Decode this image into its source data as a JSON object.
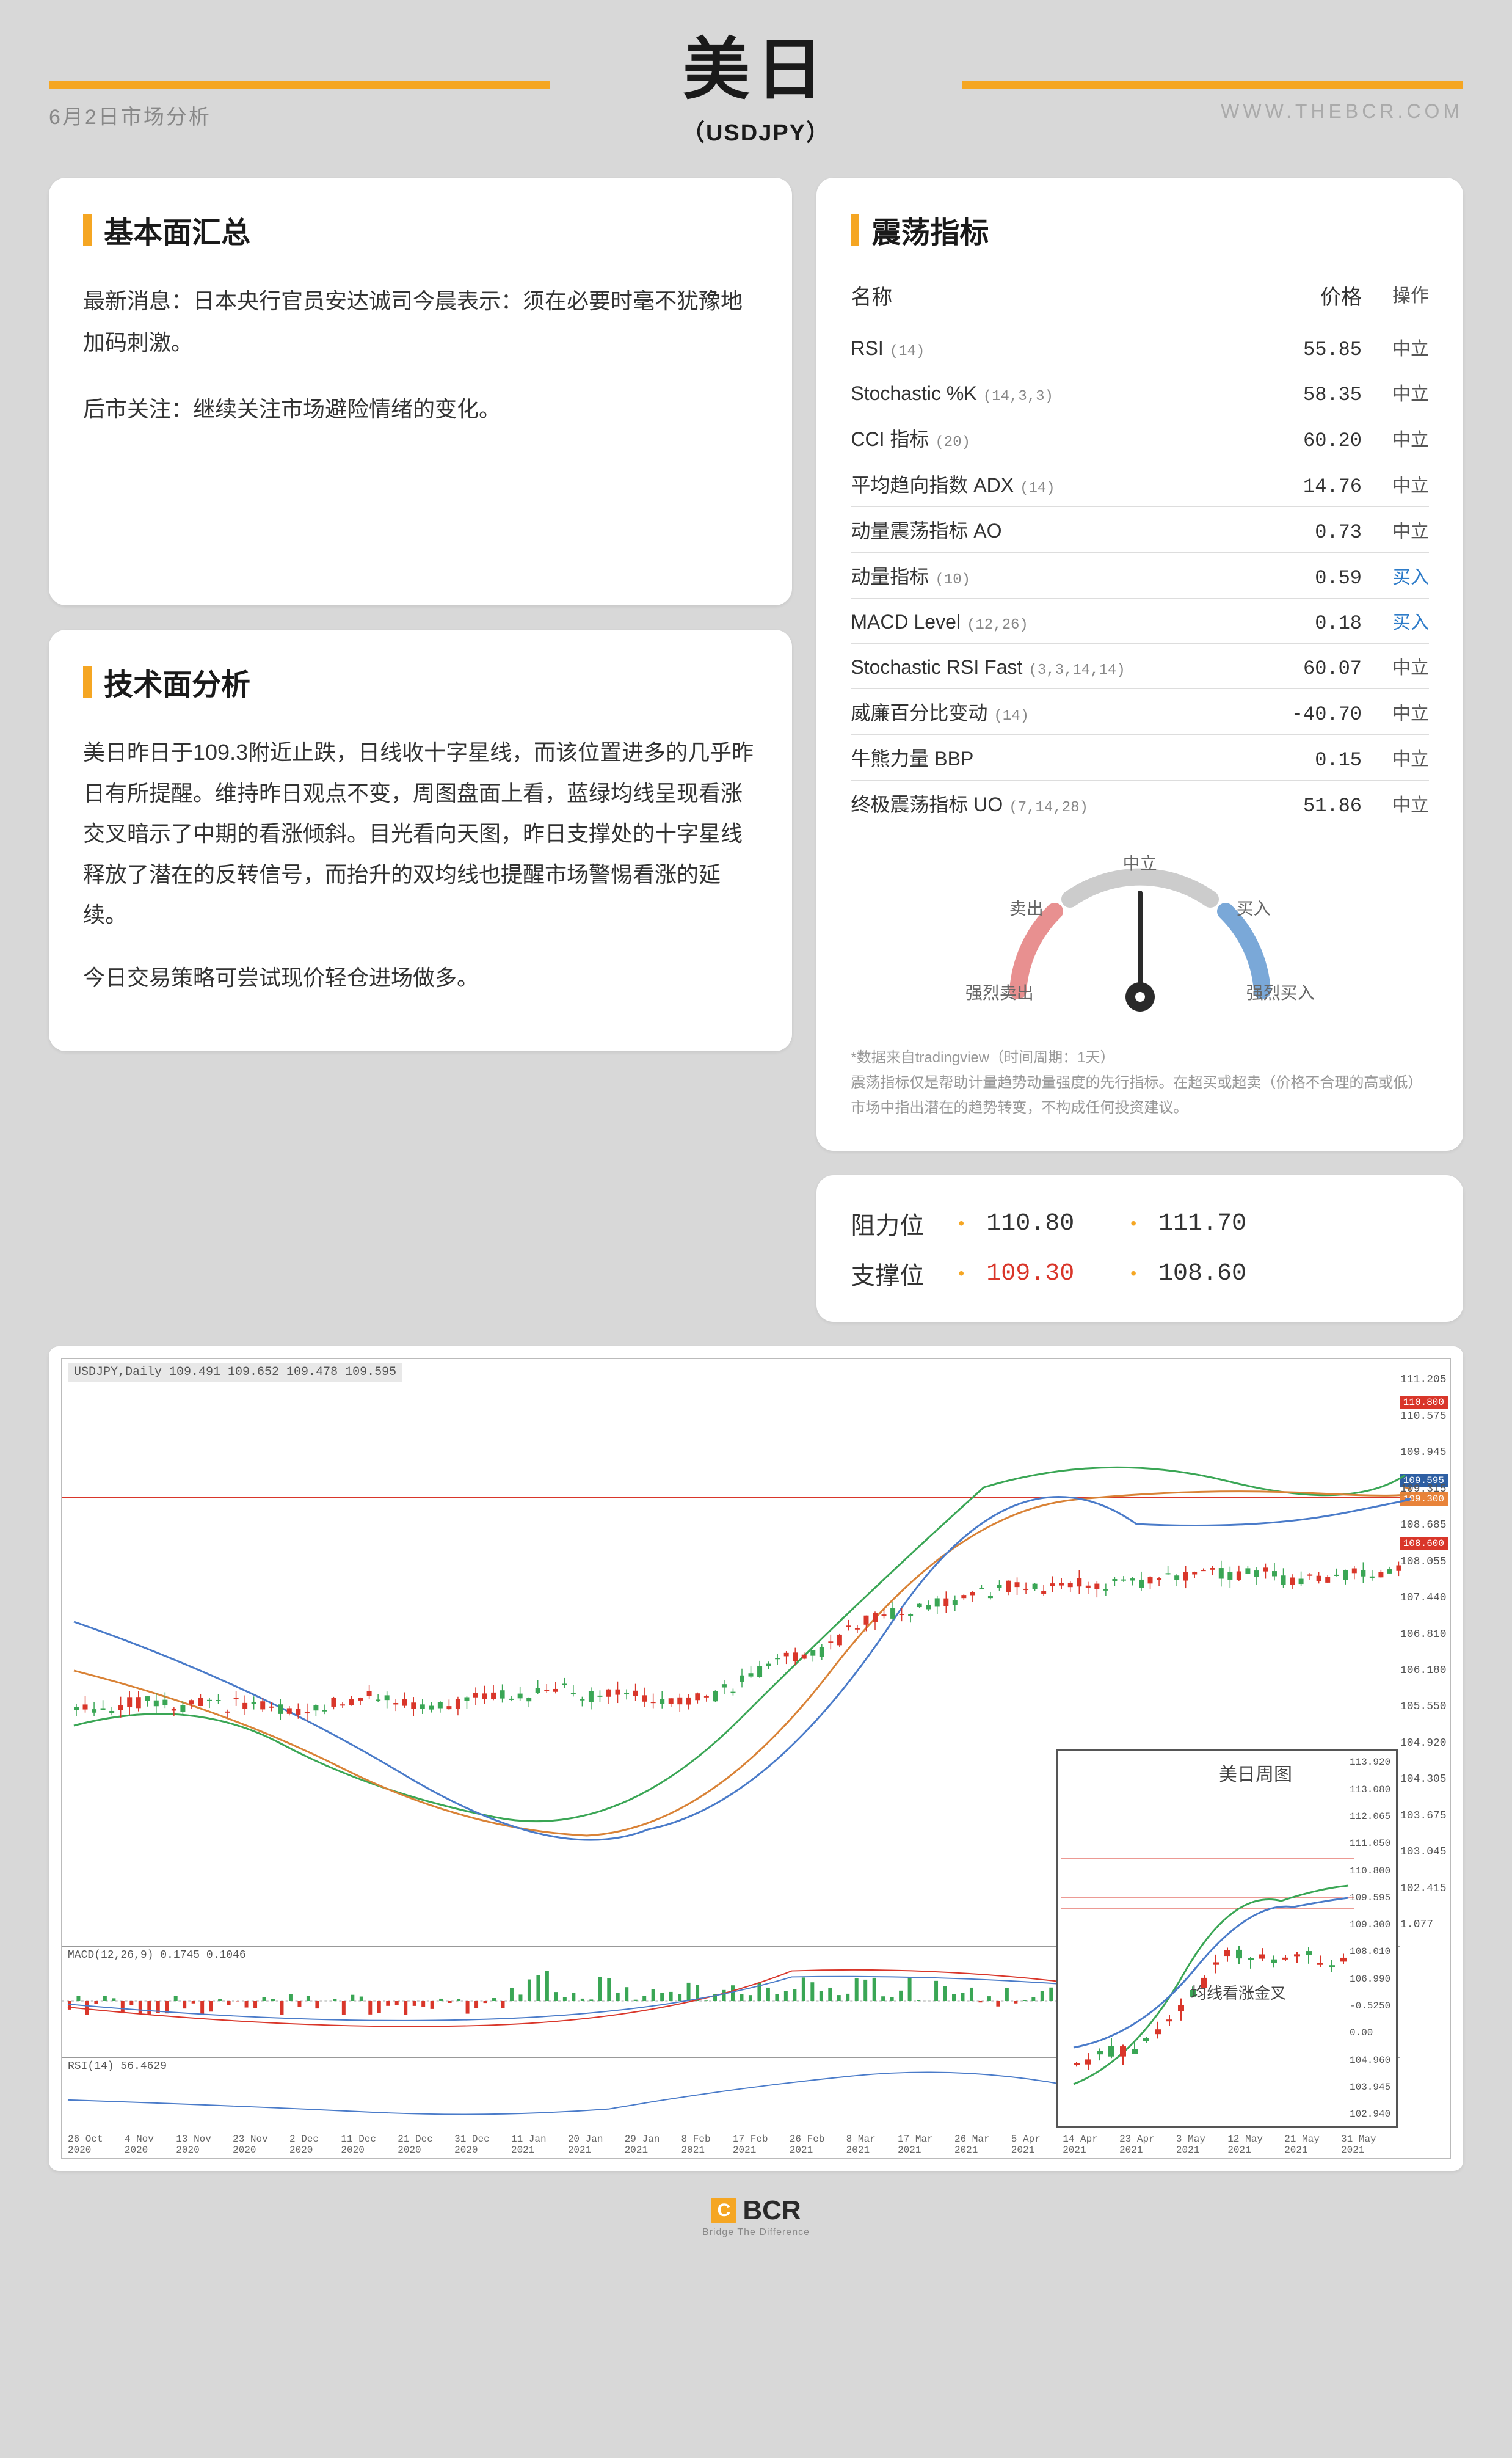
{
  "header": {
    "title_main": "美日",
    "title_sub": "（USDJPY）",
    "date_label": "6月2日市场分析",
    "site_label": "WWW.THEBCR.COM"
  },
  "fundamentals": {
    "title": "基本面汇总",
    "para1": "最新消息：日本央行官员安达诚司今晨表示：须在必要时毫不犹豫地加码刺激。",
    "para2": "后市关注：继续关注市场避险情绪的变化。"
  },
  "technical": {
    "title": "技术面分析",
    "para1": "美日昨日于109.3附近止跌，日线收十字星线，而该位置进多的几乎昨日有所提醒。维持昨日观点不变，周图盘面上看，蓝绿均线呈现看涨交叉暗示了中期的看涨倾斜。目光看向天图，昨日支撑处的十字星线释放了潜在的反转信号，而抬升的双均线也提醒市场警惕看涨的延续。",
    "para2": "今日交易策略可尝试现价轻仓进场做多。"
  },
  "oscillators": {
    "title": "震荡指标",
    "head_name": "名称",
    "head_price": "价格",
    "head_action": "操作",
    "rows": [
      {
        "name": "RSI",
        "param": "(14)",
        "price": "55.85",
        "action": "中立",
        "action_class": ""
      },
      {
        "name": "Stochastic %K",
        "param": "(14,3,3)",
        "price": "58.35",
        "action": "中立",
        "action_class": ""
      },
      {
        "name": "CCI 指标",
        "param": "(20)",
        "price": "60.20",
        "action": "中立",
        "action_class": ""
      },
      {
        "name": "平均趋向指数 ADX",
        "param": "(14)",
        "price": "14.76",
        "action": "中立",
        "action_class": ""
      },
      {
        "name": "动量震荡指标 AO",
        "param": "",
        "price": "0.73",
        "action": "中立",
        "action_class": ""
      },
      {
        "name": "动量指标",
        "param": "(10)",
        "price": "0.59",
        "action": "买入",
        "action_class": "buy"
      },
      {
        "name": "MACD Level",
        "param": "(12,26)",
        "price": "0.18",
        "action": "买入",
        "action_class": "buy"
      },
      {
        "name": "Stochastic RSI Fast",
        "param": "(3,3,14,14)",
        "price": "60.07",
        "action": "中立",
        "action_class": ""
      },
      {
        "name": "威廉百分比变动",
        "param": "(14)",
        "price": "-40.70",
        "action": "中立",
        "action_class": ""
      },
      {
        "name": "牛熊力量 BBP",
        "param": "",
        "price": "0.15",
        "action": "中立",
        "action_class": ""
      },
      {
        "name": "终极震荡指标 UO",
        "param": "(7,14,28)",
        "price": "51.86",
        "action": "中立",
        "action_class": ""
      }
    ],
    "gauge": {
      "neutral": "中立",
      "sell": "卖出",
      "buy": "买入",
      "strong_sell": "强烈卖出",
      "strong_buy": "强烈买入",
      "needle_angle": 0,
      "sell_color": "#e89090",
      "neutral_color": "#cccccc",
      "buy_color": "#7aa8d8"
    },
    "disclaimer1": "*数据来自tradingview（时间周期：1天）",
    "disclaimer2": "震荡指标仅是帮助计量趋势动量强度的先行指标。在超买或超卖（价格不合理的高或低）市场中指出潜在的趋势转变，不构成任何投资建议。"
  },
  "levels": {
    "resistance_label": "阻力位",
    "support_label": "支撑位",
    "r1": "110.80",
    "r2": "111.70",
    "s1": "109.30",
    "s2": "108.60"
  },
  "chart": {
    "label": "USDJPY,Daily  109.491 109.652 109.478 109.595",
    "price_ticks": [
      "111.205",
      "110.575",
      "109.945",
      "109.315",
      "108.685",
      "108.055",
      "107.440",
      "106.810",
      "106.180",
      "105.550",
      "104.920",
      "104.305",
      "103.675",
      "103.045",
      "102.415",
      "1.077"
    ],
    "tag_11080": "110.800",
    "tag_10959": "109.595",
    "tag_10930": "109.300",
    "tag_10860": "108.600",
    "macd_label": "MACD(12,26,9) 0.1745 0.1046",
    "rsi_label": "RSI(14) 56.4629",
    "dates": [
      "26 Oct 2020",
      "4 Nov 2020",
      "13 Nov 2020",
      "23 Nov 2020",
      "2 Dec 2020",
      "11 Dec 2020",
      "21 Dec 2020",
      "31 Dec 2020",
      "11 Jan 2021",
      "20 Jan 2021",
      "29 Jan 2021",
      "8 Feb 2021",
      "17 Feb 2021",
      "26 Feb 2021",
      "8 Mar 2021",
      "17 Mar 2021",
      "26 Mar 2021",
      "5 Apr 2021",
      "14 Apr 2021",
      "23 Apr 2021",
      "3 May 2021",
      "12 May 2021",
      "21 May 2021",
      "31 May 2021"
    ],
    "inset_title": "美日周图",
    "inset_note": "均线看涨金叉",
    "inset_ticks": [
      "113.920",
      "113.080",
      "112.065",
      "111.050",
      "110.800",
      "109.595",
      "109.300",
      "108.010",
      "106.990",
      "-0.5250",
      "0.00",
      "104.960",
      "103.945",
      "102.940"
    ]
  },
  "footer": {
    "brand": "BCR",
    "tagline": "Bridge The Difference"
  },
  "colors": {
    "accent": "#f5a623",
    "card_bg": "#ffffff",
    "page_bg": "#d8d8d8",
    "text": "#333333",
    "red": "#d9362a",
    "blue": "#2e7cc9",
    "green_candle": "#3aa655",
    "red_candle": "#d9362a"
  }
}
